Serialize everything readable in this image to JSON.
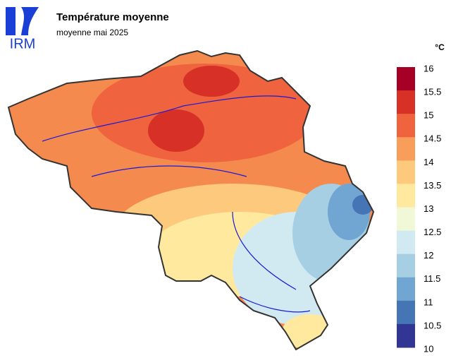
{
  "header": {
    "logo": "IRM",
    "title": "Température moyenne",
    "subtitle": "moyenne mai 2025"
  },
  "legend": {
    "unit": "°C",
    "ticks": [
      16,
      15.5,
      15,
      14.5,
      14,
      13.5,
      13,
      12.5,
      12,
      11.5,
      11,
      10.5,
      10
    ],
    "colors": [
      "#a50026",
      "#d73027",
      "#ef633f",
      "#f99e5a",
      "#fdc97c",
      "#fee99e",
      "#f0f8d8",
      "#d1e9f1",
      "#a6cfe4",
      "#72a6d2",
      "#4575b4",
      "#313695"
    ]
  }
}
